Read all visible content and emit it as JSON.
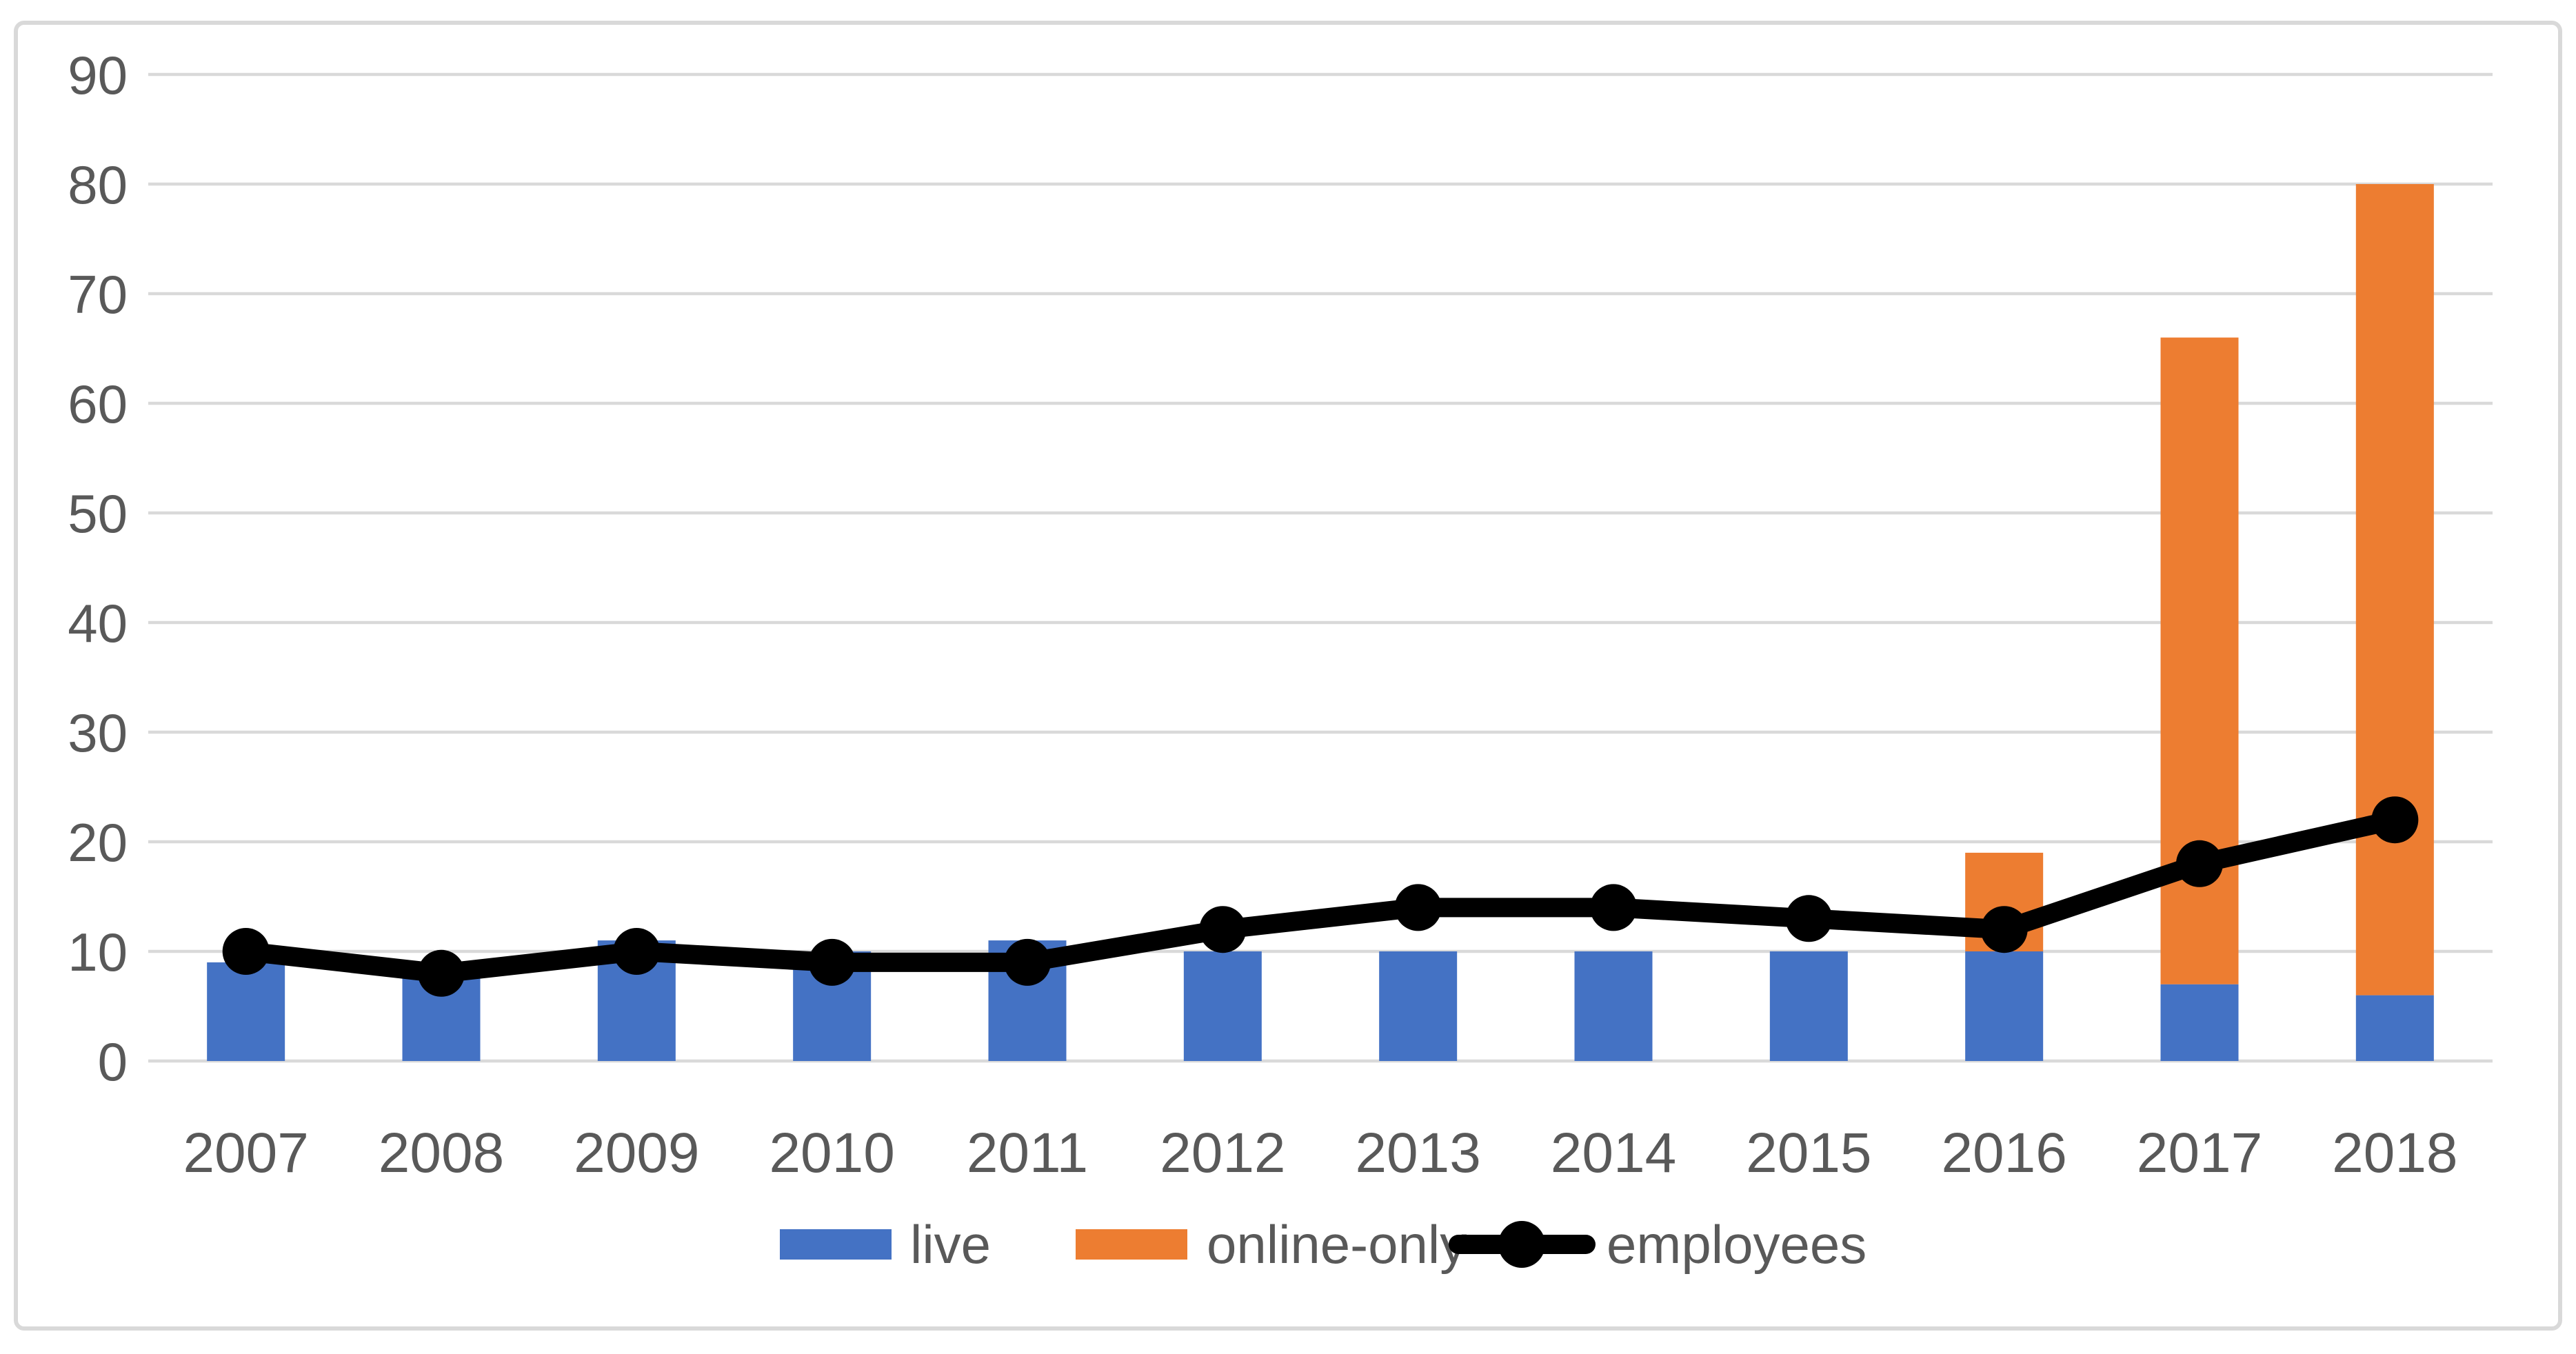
{
  "chart_data": {
    "type": "bar",
    "subtype": "stacked-bar-with-line",
    "title": "",
    "xlabel": "",
    "ylabel": "",
    "categories": [
      "2007",
      "2008",
      "2009",
      "2010",
      "2011",
      "2012",
      "2013",
      "2014",
      "2015",
      "2016",
      "2017",
      "2018"
    ],
    "series": [
      {
        "name": "live",
        "type": "bar",
        "color": "#4472C4",
        "values": [
          9,
          9,
          11,
          10,
          11,
          10,
          10,
          10,
          10,
          10,
          7,
          6
        ]
      },
      {
        "name": "online-only",
        "type": "bar",
        "color": "#ED7D31",
        "values": [
          0,
          0,
          0,
          0,
          0,
          0,
          0,
          0,
          0,
          9,
          59,
          74
        ]
      },
      {
        "name": "employees",
        "type": "line",
        "color": "#000000",
        "values": [
          10,
          8,
          10,
          9,
          9,
          12,
          14,
          14,
          13,
          12,
          18,
          22
        ]
      }
    ],
    "stacked_totals": [
      9,
      9,
      11,
      10,
      11,
      10,
      10,
      10,
      10,
      19,
      66,
      80
    ],
    "y_axis": {
      "min": 0,
      "max": 90,
      "step": 10,
      "tick_labels": [
        "0",
        "10",
        "20",
        "30",
        "40",
        "50",
        "60",
        "70",
        "80",
        "90"
      ]
    },
    "grid": true,
    "legend_position": "bottom",
    "legend": [
      {
        "label": "live",
        "swatch": "rect",
        "color": "#4472C4"
      },
      {
        "label": "online-only",
        "swatch": "rect",
        "color": "#ED7D31"
      },
      {
        "label": "employees",
        "swatch": "line-marker",
        "color": "#000000"
      }
    ]
  },
  "colors": {
    "bar_live": "#4472C4",
    "bar_online_only": "#ED7D31",
    "line_employees": "#000000",
    "gridline": "#D9D9D9",
    "frame_border": "#D9D9D9",
    "axis_text": "#595959",
    "background": "#FFFFFF"
  }
}
